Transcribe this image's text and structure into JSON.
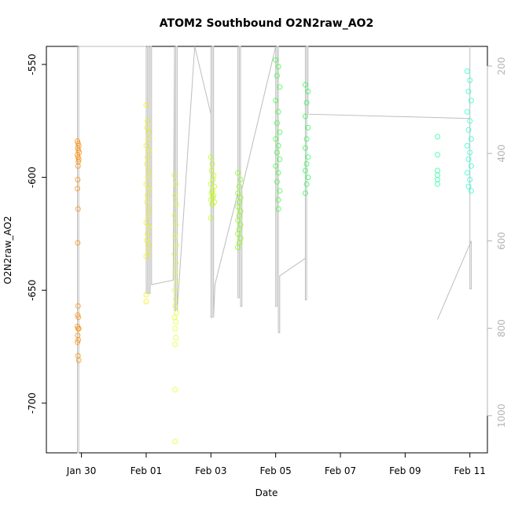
{
  "chart_data": {
    "type": "scatter",
    "title": "ATOM2 Southbound O2N2raw_AO2",
    "xlabel": "Date",
    "ylabel": "O2N2raw_AO2",
    "xlim": [
      "2024-01-28T22:00",
      "2024-02-11T13:00"
    ],
    "ylim": [
      -722,
      -542
    ],
    "y2lim": [
      1085,
      155
    ],
    "x_ticks": [
      "Jan 30",
      "Feb 01",
      "Feb 03",
      "Feb 05",
      "Feb 07",
      "Feb 09",
      "Feb 11"
    ],
    "x_tick_values": [
      "2024-01-30",
      "2024-02-01",
      "2024-02-03",
      "2024-02-05",
      "2024-02-07",
      "2024-02-09",
      "2024-02-11"
    ],
    "y_ticks": [
      -550,
      -600,
      -650,
      -700
    ],
    "y2_ticks": [
      200,
      400,
      600,
      800,
      1000
    ],
    "grid": false,
    "legend": "none",
    "colors": {
      "trace": "#bdbdbd",
      "axis": "#000000",
      "right_axis": "#b3b3b3"
    },
    "series": [
      {
        "color": "#ff8c00",
        "points": [
          [
            "2024-01-29T21:00",
            -584
          ],
          [
            "2024-01-29T21:30",
            -585
          ],
          [
            "2024-01-29T22:00",
            -586
          ],
          [
            "2024-01-29T21:15",
            -587
          ],
          [
            "2024-01-29T21:45",
            -588
          ],
          [
            "2024-01-29T22:15",
            -589
          ],
          [
            "2024-01-29T21:00",
            -590
          ],
          [
            "2024-01-29T21:30",
            -591
          ],
          [
            "2024-01-29T22:00",
            -592
          ],
          [
            "2024-01-29T21:45",
            -593
          ],
          [
            "2024-01-29T21:30",
            -595
          ],
          [
            "2024-01-29T21:15",
            -601
          ],
          [
            "2024-01-29T21:00",
            -605
          ],
          [
            "2024-01-29T21:30",
            -614
          ],
          [
            "2024-01-29T21:15",
            -629
          ],
          [
            "2024-01-29T21:30",
            -657
          ],
          [
            "2024-01-29T21:15",
            -661
          ],
          [
            "2024-01-29T21:45",
            -662
          ],
          [
            "2024-01-29T21:00",
            -666
          ],
          [
            "2024-01-29T21:30",
            -667
          ],
          [
            "2024-01-29T22:00",
            -667
          ],
          [
            "2024-01-29T21:15",
            -670
          ],
          [
            "2024-01-29T21:45",
            -672
          ],
          [
            "2024-01-29T21:00",
            -673
          ],
          [
            "2024-01-29T21:30",
            -679
          ],
          [
            "2024-01-29T22:00",
            -681
          ]
        ]
      },
      {
        "color": "#f2f200",
        "points": [
          [
            "2024-02-01T00:00",
            -568
          ],
          [
            "2024-02-01T01:00",
            -575
          ],
          [
            "2024-02-01T00:30",
            -578
          ],
          [
            "2024-02-01T02:00",
            -580
          ],
          [
            "2024-02-01T01:30",
            -583
          ],
          [
            "2024-02-01T00:00",
            -586
          ],
          [
            "2024-02-01T02:30",
            -588
          ],
          [
            "2024-02-01T01:00",
            -591
          ],
          [
            "2024-02-01T00:30",
            -594
          ],
          [
            "2024-02-01T02:00",
            -597
          ],
          [
            "2024-02-01T01:30",
            -600
          ],
          [
            "2024-02-01T00:00",
            -603
          ],
          [
            "2024-02-01T02:30",
            -605
          ],
          [
            "2024-02-01T01:00",
            -608
          ],
          [
            "2024-02-01T00:30",
            -611
          ],
          [
            "2024-02-01T02:00",
            -614
          ],
          [
            "2024-02-01T01:30",
            -617
          ],
          [
            "2024-02-01T00:00",
            -620
          ],
          [
            "2024-02-01T02:30",
            -622
          ],
          [
            "2024-02-01T01:00",
            -625
          ],
          [
            "2024-02-01T00:30",
            -628
          ],
          [
            "2024-02-01T02:00",
            -630
          ],
          [
            "2024-02-01T01:30",
            -633
          ],
          [
            "2024-02-01T00:00",
            -635
          ],
          [
            "2024-02-01T00:00",
            -652
          ],
          [
            "2024-02-01T00:00",
            -655
          ]
        ]
      },
      {
        "color": "#e6ff1a",
        "points": [
          [
            "2024-02-01T21:00",
            -599
          ],
          [
            "2024-02-01T22:00",
            -603
          ],
          [
            "2024-02-01T21:30",
            -608
          ],
          [
            "2024-02-01T22:30",
            -612
          ],
          [
            "2024-02-01T21:00",
            -617
          ],
          [
            "2024-02-01T22:00",
            -621
          ],
          [
            "2024-02-01T21:30",
            -626
          ],
          [
            "2024-02-01T22:30",
            -630
          ],
          [
            "2024-02-01T21:00",
            -634
          ],
          [
            "2024-02-01T22:00",
            -638
          ],
          [
            "2024-02-01T21:30",
            -642
          ],
          [
            "2024-02-01T22:30",
            -646
          ],
          [
            "2024-02-01T21:00",
            -650
          ],
          [
            "2024-02-01T22:00",
            -654
          ],
          [
            "2024-02-01T21:30",
            -657
          ],
          [
            "2024-02-01T22:30",
            -660
          ],
          [
            "2024-02-01T21:00",
            -662
          ],
          [
            "2024-02-01T22:00",
            -664
          ],
          [
            "2024-02-01T21:30",
            -667
          ],
          [
            "2024-02-01T22:00",
            -671
          ],
          [
            "2024-02-01T21:30",
            -674
          ],
          [
            "2024-02-01T21:30",
            -694
          ],
          [
            "2024-02-01T21:30",
            -717
          ]
        ]
      },
      {
        "color": "#bfff00",
        "points": [
          [
            "2024-02-03T00:00",
            -591
          ],
          [
            "2024-02-03T01:00",
            -594
          ],
          [
            "2024-02-03T00:30",
            -597
          ],
          [
            "2024-02-03T02:00",
            -599
          ],
          [
            "2024-02-03T01:30",
            -601
          ],
          [
            "2024-02-03T00:00",
            -603
          ],
          [
            "2024-02-03T02:30",
            -604
          ],
          [
            "2024-02-03T01:00",
            -606
          ],
          [
            "2024-02-03T00:30",
            -607
          ],
          [
            "2024-02-03T02:00",
            -608
          ],
          [
            "2024-02-03T01:30",
            -609
          ],
          [
            "2024-02-03T00:00",
            -610
          ],
          [
            "2024-02-03T02:30",
            -611
          ],
          [
            "2024-02-03T01:00",
            -612
          ],
          [
            "2024-02-03T00:00",
            -618
          ]
        ]
      },
      {
        "color": "#80ff00",
        "points": [
          [
            "2024-02-03T20:00",
            -598
          ],
          [
            "2024-02-03T22:00",
            -601
          ],
          [
            "2024-02-03T21:00",
            -604
          ],
          [
            "2024-02-03T20:00",
            -607
          ],
          [
            "2024-02-03T22:00",
            -609
          ],
          [
            "2024-02-03T21:00",
            -611
          ],
          [
            "2024-02-03T20:00",
            -613
          ],
          [
            "2024-02-03T22:00",
            -615
          ],
          [
            "2024-02-03T21:00",
            -617
          ],
          [
            "2024-02-03T20:00",
            -619
          ],
          [
            "2024-02-03T22:00",
            -621
          ],
          [
            "2024-02-03T21:00",
            -623
          ],
          [
            "2024-02-03T20:00",
            -625
          ],
          [
            "2024-02-03T22:00",
            -627
          ],
          [
            "2024-02-03T21:00",
            -629
          ],
          [
            "2024-02-03T20:00",
            -631
          ]
        ]
      },
      {
        "color": "#33ff33",
        "points": [
          [
            "2024-02-05T00:00",
            -548
          ],
          [
            "2024-02-05T02:00",
            -551
          ],
          [
            "2024-02-05T01:00",
            -555
          ],
          [
            "2024-02-05T03:00",
            -560
          ],
          [
            "2024-02-05T00:00",
            -566
          ],
          [
            "2024-02-05T02:00",
            -571
          ],
          [
            "2024-02-05T01:00",
            -576
          ],
          [
            "2024-02-05T03:00",
            -580
          ],
          [
            "2024-02-05T00:00",
            -583
          ],
          [
            "2024-02-05T02:00",
            -586
          ],
          [
            "2024-02-05T01:00",
            -589
          ],
          [
            "2024-02-05T03:00",
            -592
          ],
          [
            "2024-02-05T00:00",
            -595
          ],
          [
            "2024-02-05T02:00",
            -598
          ],
          [
            "2024-02-05T01:00",
            -602
          ],
          [
            "2024-02-05T03:00",
            -606
          ],
          [
            "2024-02-05T02:00",
            -610
          ],
          [
            "2024-02-05T02:00",
            -614
          ]
        ]
      },
      {
        "color": "#1aff4d",
        "points": [
          [
            "2024-02-05T22:00",
            -559
          ],
          [
            "2024-02-06T00:00",
            -562
          ],
          [
            "2024-02-05T23:00",
            -567
          ],
          [
            "2024-02-05T22:00",
            -573
          ],
          [
            "2024-02-06T00:00",
            -578
          ],
          [
            "2024-02-05T23:00",
            -583
          ],
          [
            "2024-02-05T22:00",
            -587
          ],
          [
            "2024-02-06T00:00",
            -591
          ],
          [
            "2024-02-05T23:00",
            -594
          ],
          [
            "2024-02-05T22:00",
            -597
          ],
          [
            "2024-02-06T00:00",
            -600
          ],
          [
            "2024-02-05T23:00",
            -603
          ],
          [
            "2024-02-05T22:00",
            -607
          ]
        ]
      },
      {
        "color": "#1aff99",
        "points": [
          [
            "2024-02-10T00:00",
            -582
          ],
          [
            "2024-02-10T00:00",
            -590
          ],
          [
            "2024-02-10T00:00",
            -597
          ],
          [
            "2024-02-10T00:00",
            -599
          ],
          [
            "2024-02-10T00:00",
            -601
          ],
          [
            "2024-02-10T00:00",
            -603
          ]
        ]
      },
      {
        "color": "#1affcc",
        "points": [
          [
            "2024-02-10T22:00",
            -553
          ],
          [
            "2024-02-11T00:00",
            -557
          ],
          [
            "2024-02-10T23:00",
            -562
          ],
          [
            "2024-02-11T01:00",
            -566
          ],
          [
            "2024-02-10T22:00",
            -571
          ],
          [
            "2024-02-11T00:00",
            -575
          ],
          [
            "2024-02-10T23:00",
            -579
          ],
          [
            "2024-02-11T01:00",
            -583
          ],
          [
            "2024-02-10T22:00",
            -586
          ],
          [
            "2024-02-11T00:00",
            -589
          ],
          [
            "2024-02-10T23:00",
            -592
          ],
          [
            "2024-02-11T01:00",
            -595
          ],
          [
            "2024-02-10T22:00",
            -598
          ],
          [
            "2024-02-11T00:00",
            -601
          ],
          [
            "2024-02-10T23:00",
            -604
          ],
          [
            "2024-02-11T01:00",
            -606
          ]
        ]
      }
    ],
    "trace": [
      [
        "2024-01-29T21:00",
        155
      ],
      [
        "2024-01-29T21:00",
        1085
      ],
      [
        "2024-01-29T22:00",
        1085
      ],
      [
        "2024-01-29T22:00",
        155
      ],
      [
        "2024-02-01T00:00",
        155
      ],
      [
        "2024-02-01T00:00",
        720
      ],
      [
        "2024-02-01T01:00",
        720
      ],
      [
        "2024-02-01T01:00",
        155
      ],
      [
        "2024-02-01T02:00",
        155
      ],
      [
        "2024-02-01T02:00",
        720
      ],
      [
        "2024-02-01T03:00",
        720
      ],
      [
        "2024-02-01T03:00",
        155
      ],
      [
        "2024-02-01T04:00",
        155
      ],
      [
        "2024-02-01T04:00",
        700
      ],
      [
        "2024-02-01T20:00",
        690
      ],
      [
        "2024-02-01T21:00",
        155
      ],
      [
        "2024-02-01T21:00",
        760
      ],
      [
        "2024-02-01T22:00",
        760
      ],
      [
        "2024-02-01T22:00",
        155
      ],
      [
        "2024-02-01T23:00",
        155
      ],
      [
        "2024-02-01T23:00",
        760
      ],
      [
        "2024-02-02T12:00",
        155
      ],
      [
        "2024-02-03T00:00",
        310
      ],
      [
        "2024-02-03T00:00",
        155
      ],
      [
        "2024-02-03T00:00",
        775
      ],
      [
        "2024-02-03T01:00",
        775
      ],
      [
        "2024-02-03T01:00",
        155
      ],
      [
        "2024-02-03T02:00",
        155
      ],
      [
        "2024-02-03T02:00",
        775
      ],
      [
        "2024-02-03T03:00",
        700
      ],
      [
        "2024-02-03T20:00",
        490
      ],
      [
        "2024-02-03T20:00",
        155
      ],
      [
        "2024-02-03T20:00",
        730
      ],
      [
        "2024-02-03T21:00",
        730
      ],
      [
        "2024-02-03T21:00",
        155
      ],
      [
        "2024-02-03T22:00",
        155
      ],
      [
        "2024-02-03T22:00",
        750
      ],
      [
        "2024-02-03T23:00",
        750
      ],
      [
        "2024-02-03T23:00",
        480
      ],
      [
        "2024-02-05T00:00",
        155
      ],
      [
        "2024-02-05T00:00",
        750
      ],
      [
        "2024-02-05T01:00",
        750
      ],
      [
        "2024-02-05T01:00",
        155
      ],
      [
        "2024-02-05T02:00",
        155
      ],
      [
        "2024-02-05T02:00",
        810
      ],
      [
        "2024-02-05T03:00",
        810
      ],
      [
        "2024-02-05T03:00",
        680
      ],
      [
        "2024-02-05T22:00",
        640
      ],
      [
        "2024-02-05T22:00",
        155
      ],
      [
        "2024-02-05T22:00",
        735
      ],
      [
        "2024-02-05T23:00",
        735
      ],
      [
        "2024-02-05T23:00",
        155
      ],
      [
        "2024-02-06T00:00",
        155
      ],
      [
        "2024-02-06T00:00",
        310
      ],
      [
        "2024-02-11T00:00",
        320
      ],
      [
        "2024-02-11T00:00",
        155
      ],
      [
        "2024-02-11T00:00",
        710
      ],
      [
        "2024-02-11T01:00",
        710
      ],
      [
        "2024-02-11T01:00",
        600
      ],
      [
        "2024-02-10T00:00",
        780
      ]
    ]
  }
}
